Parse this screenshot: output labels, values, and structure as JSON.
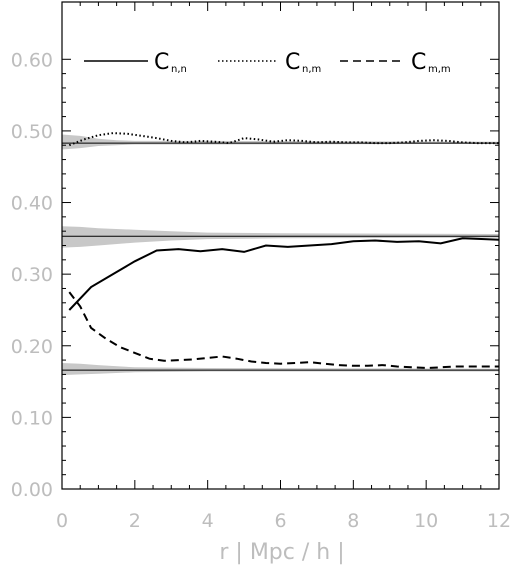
{
  "chart_data": {
    "type": "line",
    "xlabel": "r | Mpc / h |",
    "ylabel": "",
    "xlim": [
      0,
      12
    ],
    "ylim": [
      0,
      0.68
    ],
    "x_ticks": [
      "0",
      "2",
      "4",
      "6",
      "8",
      "10",
      "12"
    ],
    "y_ticks": [
      "0.00",
      "0.10",
      "0.20",
      "0.30",
      "0.40",
      "0.50",
      "0.60"
    ],
    "legend_position": "top",
    "grid": false,
    "series": [
      {
        "name": "C",
        "subscript": "n,n",
        "style": "solid",
        "x": [
          0.2,
          0.8,
          1.4,
          2.0,
          2.6,
          3.2,
          3.8,
          4.4,
          5.0,
          5.6,
          6.2,
          6.8,
          7.4,
          8.0,
          8.6,
          9.2,
          9.8,
          10.4,
          11.0,
          11.6,
          12.0
        ],
        "y": [
          0.25,
          0.282,
          0.3,
          0.318,
          0.333,
          0.335,
          0.332,
          0.335,
          0.331,
          0.34,
          0.338,
          0.34,
          0.342,
          0.346,
          0.347,
          0.345,
          0.346,
          0.343,
          0.35,
          0.349,
          0.348
        ]
      },
      {
        "name": "C",
        "subscript": "n,m",
        "style": "dotted",
        "x": [
          0.2,
          0.6,
          1.0,
          1.4,
          1.8,
          2.2,
          2.6,
          3.0,
          3.4,
          3.8,
          4.2,
          4.6,
          5.0,
          5.4,
          5.8,
          6.2,
          6.6,
          7.0,
          7.4,
          7.8,
          8.2,
          8.6,
          9.0,
          9.4,
          9.8,
          10.2,
          10.6,
          11.0,
          11.4,
          11.8,
          12.0
        ],
        "y": [
          0.48,
          0.488,
          0.494,
          0.497,
          0.496,
          0.493,
          0.49,
          0.486,
          0.484,
          0.486,
          0.485,
          0.483,
          0.49,
          0.488,
          0.485,
          0.487,
          0.486,
          0.484,
          0.485,
          0.484,
          0.484,
          0.483,
          0.483,
          0.484,
          0.486,
          0.487,
          0.486,
          0.484,
          0.483,
          0.483,
          0.483
        ]
      },
      {
        "name": "C",
        "subscript": "m,m",
        "style": "dashed",
        "x": [
          0.2,
          0.5,
          0.8,
          1.2,
          1.6,
          2.0,
          2.4,
          2.8,
          3.2,
          3.6,
          4.0,
          4.4,
          4.8,
          5.2,
          5.6,
          6.0,
          6.4,
          6.8,
          7.2,
          7.6,
          8.0,
          8.4,
          8.8,
          9.2,
          9.6,
          10.0,
          10.4,
          10.8,
          11.2,
          11.6,
          12.0
        ],
        "y": [
          0.275,
          0.255,
          0.225,
          0.21,
          0.198,
          0.19,
          0.182,
          0.179,
          0.18,
          0.181,
          0.183,
          0.185,
          0.182,
          0.178,
          0.176,
          0.175,
          0.176,
          0.177,
          0.175,
          0.173,
          0.172,
          0.172,
          0.173,
          0.171,
          0.17,
          0.169,
          0.17,
          0.171,
          0.171,
          0.171,
          0.171
        ]
      }
    ],
    "reference_lines": [
      {
        "y": 0.483,
        "band": [
          [
            0,
            0.474,
            0.495
          ],
          [
            0.5,
            0.476,
            0.493
          ],
          [
            1.0,
            0.479,
            0.489
          ],
          [
            1.5,
            0.48,
            0.487
          ],
          [
            2.0,
            0.481,
            0.486
          ],
          [
            4.0,
            0.481,
            0.486
          ],
          [
            12.0,
            0.482,
            0.485
          ]
        ]
      },
      {
        "y": 0.353,
        "band": [
          [
            0,
            0.337,
            0.367
          ],
          [
            0.5,
            0.338,
            0.366
          ],
          [
            1.0,
            0.34,
            0.364
          ],
          [
            2.0,
            0.344,
            0.362
          ],
          [
            3.0,
            0.347,
            0.36
          ],
          [
            4.0,
            0.349,
            0.358
          ],
          [
            6.0,
            0.35,
            0.357
          ],
          [
            12.0,
            0.351,
            0.356
          ]
        ]
      },
      {
        "y": 0.166,
        "band": [
          [
            0,
            0.159,
            0.176
          ],
          [
            0.5,
            0.16,
            0.175
          ],
          [
            1.0,
            0.161,
            0.173
          ],
          [
            2.0,
            0.163,
            0.17
          ],
          [
            4.0,
            0.164,
            0.169
          ],
          [
            12.0,
            0.164,
            0.168
          ]
        ]
      }
    ]
  }
}
